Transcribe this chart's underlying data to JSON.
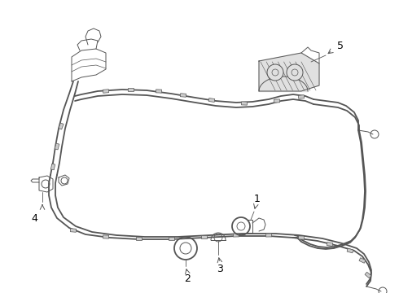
{
  "background_color": "#ffffff",
  "line_color": "#555555",
  "label_color": "#000000",
  "lw_harness": 1.3,
  "lw_thin": 0.7,
  "lw_clip": 0.5
}
